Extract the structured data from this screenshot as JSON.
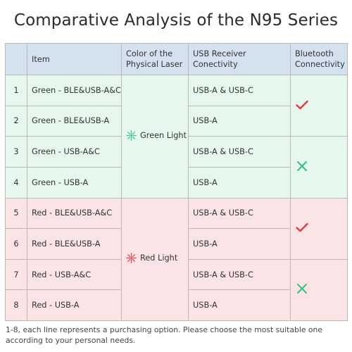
{
  "title": "Comparative Analysis of the N95 Series",
  "table": {
    "headers": {
      "num": "",
      "item": "Item",
      "laser": "Color of the Physical Laser",
      "usb": "USB Receiver Conectivity",
      "bt": "Bluetooth Connectivity"
    },
    "rows": [
      {
        "num": "1",
        "item": "Green - BLE&USB-A&C",
        "usb": "USB-A & USB-C"
      },
      {
        "num": "2",
        "item": "Green - BLE&USB-A",
        "usb": "USB-A"
      },
      {
        "num": "3",
        "item": "Green - USB-A&C",
        "usb": "USB-A & USB-C"
      },
      {
        "num": "4",
        "item": "Green - USB-A",
        "usb": "USB-A"
      },
      {
        "num": "5",
        "item": "Red - BLE&USB-A&C",
        "usb": "USB-A & USB-C"
      },
      {
        "num": "6",
        "item": "Red - BLE&USB-A",
        "usb": "USB-A"
      },
      {
        "num": "7",
        "item": "Red - USB-A&C",
        "usb": "USB-A & USB-C"
      },
      {
        "num": "8",
        "item": "Red - USB-A",
        "usb": "USB-A"
      }
    ],
    "laser_groups": [
      {
        "label": "Green Light",
        "icon": "green-starburst-icon",
        "color": "#3cc886"
      },
      {
        "label": "Red Light",
        "icon": "red-starburst-icon",
        "color": "#e0434b"
      }
    ],
    "bluetooth_groups": [
      {
        "value": "yes",
        "icon": "check-icon",
        "color": "#e5383e"
      },
      {
        "value": "no",
        "icon": "cross-icon",
        "color": "#33c281"
      },
      {
        "value": "yes",
        "icon": "check-icon",
        "color": "#e5383e"
      },
      {
        "value": "no",
        "icon": "cross-icon",
        "color": "#33c281"
      }
    ],
    "colors": {
      "header_bg": "#d4e1ee",
      "green_row_bg": "#e6f8ee",
      "red_row_bg": "#fbe4e5",
      "border": "#b9b9b9"
    }
  },
  "note": "1-8, each line represents a purchasing option. Please choose the most suitable one according to your personal needs."
}
